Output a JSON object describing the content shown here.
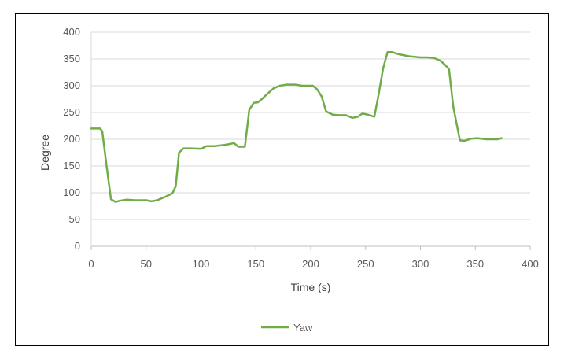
{
  "chart_data": {
    "type": "line",
    "title": "",
    "xlabel": "Time (s)",
    "ylabel": "Degree",
    "xlim": [
      0,
      400
    ],
    "ylim": [
      0,
      400
    ],
    "x_ticks": [
      "0",
      "50",
      "100",
      "150",
      "200",
      "250",
      "300",
      "350",
      "400"
    ],
    "y_ticks": [
      "0",
      "50",
      "100",
      "150",
      "200",
      "250",
      "300",
      "350",
      "400"
    ],
    "grid": "horizontal",
    "legend": "bottom",
    "series": [
      {
        "name": "Yaw",
        "color": "#70AD47",
        "x": [
          0,
          8,
          10,
          14,
          18,
          22,
          26,
          32,
          40,
          50,
          55,
          60,
          68,
          74,
          77,
          80,
          84,
          90,
          100,
          105,
          112,
          120,
          126,
          130,
          134,
          140,
          144,
          148,
          152,
          156,
          160,
          166,
          172,
          178,
          186,
          192,
          198,
          202,
          206,
          210,
          214,
          220,
          226,
          232,
          238,
          243,
          247,
          252,
          258,
          262,
          266,
          270,
          274,
          280,
          290,
          300,
          306,
          312,
          318,
          322,
          326,
          330,
          336,
          340,
          346,
          352,
          360,
          366,
          370,
          374
        ],
        "y": [
          220,
          220,
          215,
          150,
          88,
          83,
          85,
          87,
          86,
          86,
          84,
          86,
          93,
          99,
          112,
          175,
          183,
          183,
          182,
          187,
          187,
          189,
          191,
          193,
          186,
          186,
          255,
          268,
          269,
          276,
          284,
          295,
          300,
          302,
          302,
          300,
          300,
          300,
          293,
          280,
          252,
          246,
          245,
          245,
          240,
          242,
          248,
          246,
          242,
          285,
          333,
          363,
          363,
          359,
          355,
          353,
          353,
          352,
          347,
          340,
          331,
          260,
          198,
          197,
          201,
          202,
          200,
          200,
          200,
          202
        ]
      }
    ]
  }
}
